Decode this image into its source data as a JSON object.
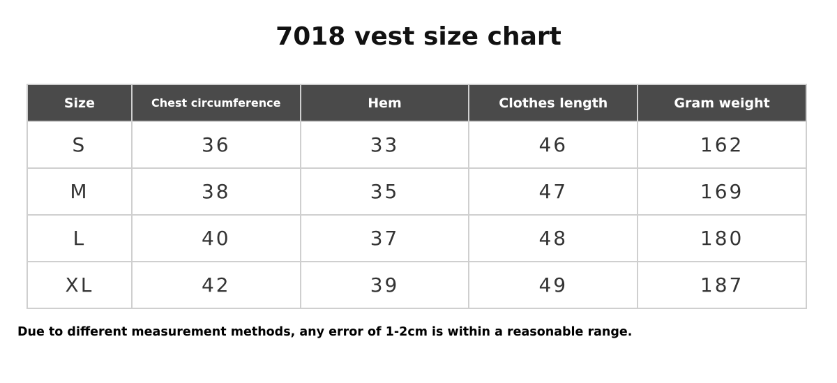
{
  "title": "7018 vest size chart",
  "columns": [
    "Size",
    "Chest circumference",
    "Hem",
    "Clothes length",
    "Gram weight"
  ],
  "rows": [
    [
      "S",
      "36",
      "33",
      "46",
      "162"
    ],
    [
      "M",
      "38",
      "35",
      "47",
      "169"
    ],
    [
      "L",
      "40",
      "37",
      "48",
      "180"
    ],
    [
      "XL",
      "42",
      "39",
      "49",
      "187"
    ]
  ],
  "note": "Due to different measurement methods, any error of 1-2cm is within a reasonable range.",
  "colors": {
    "header_bg": "#4a4a4a",
    "border": "#cfcfcf"
  }
}
